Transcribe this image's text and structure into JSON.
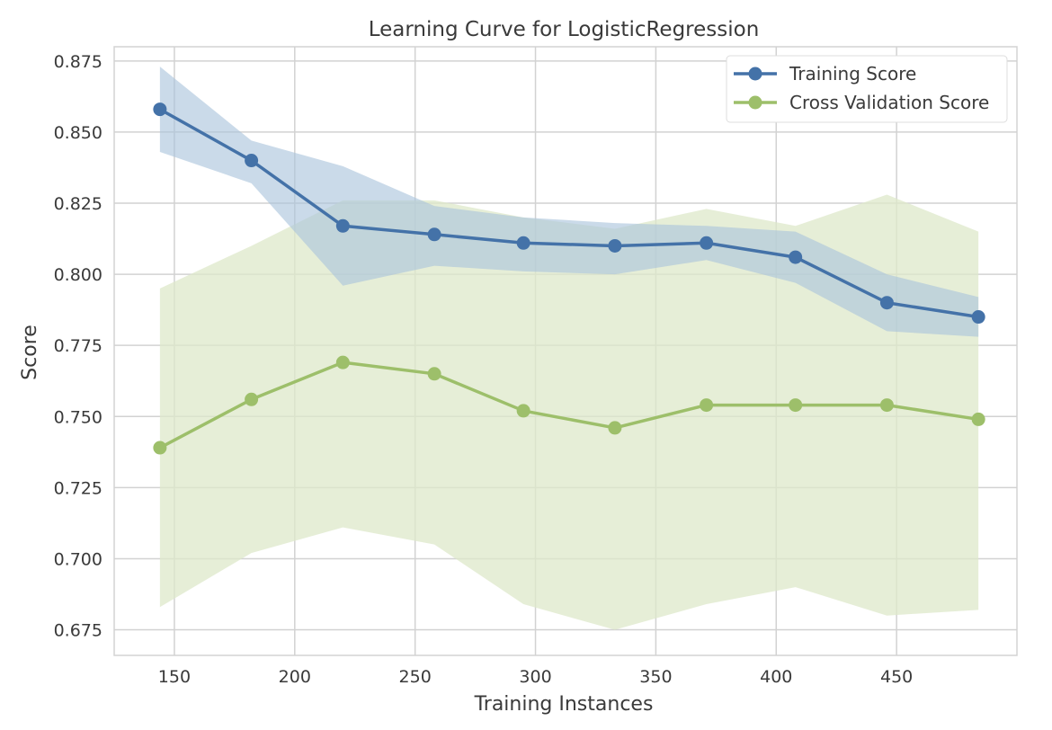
{
  "chart_data": {
    "type": "line",
    "title": "Learning Curve for LogisticRegression",
    "xlabel": "Training Instances",
    "ylabel": "Score",
    "xlim": [
      125,
      500
    ],
    "ylim": [
      0.666,
      0.88
    ],
    "xticks": [
      150,
      200,
      250,
      300,
      350,
      400,
      450
    ],
    "yticks": [
      0.675,
      0.7,
      0.725,
      0.75,
      0.775,
      0.8,
      0.825,
      0.85,
      0.875
    ],
    "xtick_labels": [
      "150",
      "200",
      "250",
      "300",
      "350",
      "400",
      "450"
    ],
    "ytick_labels": [
      "0.675",
      "0.700",
      "0.725",
      "0.750",
      "0.775",
      "0.800",
      "0.825",
      "0.850",
      "0.875"
    ],
    "grid": true,
    "legend_position": "top-right",
    "x": [
      144,
      182,
      220,
      258,
      295,
      333,
      371,
      408,
      446,
      484
    ],
    "series": [
      {
        "name": "Training Score",
        "color": "#4472a8",
        "band_color": "#a9c3dc",
        "values": [
          0.858,
          0.84,
          0.817,
          0.814,
          0.811,
          0.81,
          0.811,
          0.806,
          0.79,
          0.785
        ],
        "upper": [
          0.873,
          0.847,
          0.838,
          0.824,
          0.82,
          0.818,
          0.817,
          0.815,
          0.8,
          0.792
        ],
        "lower": [
          0.843,
          0.832,
          0.796,
          0.803,
          0.801,
          0.8,
          0.805,
          0.797,
          0.78,
          0.778
        ]
      },
      {
        "name": "Cross Validation Score",
        "color": "#9dbf6a",
        "band_color": "#dde8c9",
        "values": [
          0.739,
          0.756,
          0.769,
          0.765,
          0.752,
          0.746,
          0.754,
          0.754,
          0.754,
          0.749
        ],
        "upper": [
          0.795,
          0.81,
          0.826,
          0.826,
          0.82,
          0.816,
          0.823,
          0.817,
          0.828,
          0.815
        ],
        "lower": [
          0.683,
          0.702,
          0.711,
          0.705,
          0.684,
          0.675,
          0.684,
          0.69,
          0.68,
          0.682
        ]
      }
    ]
  }
}
